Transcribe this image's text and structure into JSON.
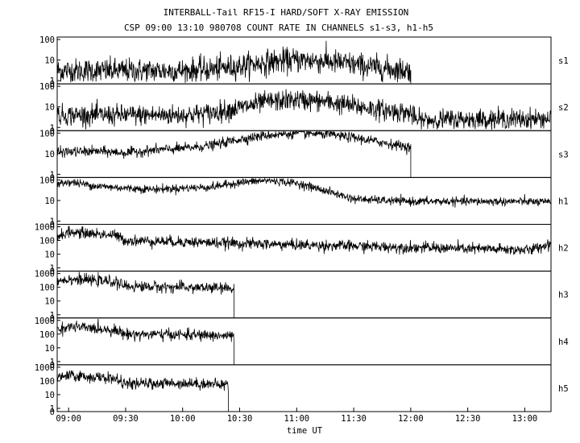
{
  "chart_data": {
    "type": "line",
    "title": "INTERBALL-Tail RF15-I HARD/SOFT X-RAY EMISSION",
    "subtitle": "CSP 09:00 13:10 980708  COUNT RATE IN CHANNELS s1-s3, h1-h5",
    "xlabel": "time UT",
    "x_ticks": [
      "09:00",
      "09:30",
      "10:00",
      "10:30",
      "11:00",
      "11:30",
      "12:00",
      "12:30",
      "13:00"
    ],
    "x_ticks_hours": [
      9.0,
      9.5,
      10.0,
      10.5,
      11.0,
      11.5,
      12.0,
      12.5,
      13.0
    ],
    "xlim": [
      8.9,
      13.23
    ],
    "y_scale": "log",
    "grid": false,
    "series": [
      {
        "name": "s1",
        "ylim": [
          0,
          100
        ],
        "y_ticks": [
          "100",
          "10",
          "1",
          "0"
        ],
        "x": [
          8.9,
          9.5,
          10.0,
          10.25,
          10.5,
          10.75,
          11.0,
          11.25,
          11.5,
          11.75,
          12.0
        ],
        "values": [
          3,
          3,
          3,
          3.5,
          5,
          8,
          10,
          9,
          6,
          4,
          3
        ],
        "noise": 0.3,
        "ends_at": 12.0
      },
      {
        "name": "s2",
        "ylim": [
          0,
          100
        ],
        "y_ticks": [
          "100",
          "10",
          "1",
          "0"
        ],
        "x": [
          8.9,
          9.5,
          10.0,
          10.25,
          10.5,
          10.75,
          11.0,
          11.25,
          11.5,
          11.75,
          12.0,
          12.05,
          12.5,
          13.0,
          13.23
        ],
        "values": [
          4,
          4,
          4,
          5,
          9,
          18,
          22,
          18,
          11,
          7,
          5,
          2.2,
          2.5,
          2.5,
          2.7
        ],
        "noise": 0.25
      },
      {
        "name": "s3",
        "ylim": [
          0,
          100
        ],
        "y_ticks": [
          "100",
          "10",
          "1",
          "0"
        ],
        "x": [
          8.9,
          9.25,
          9.5,
          9.75,
          10.0,
          10.25,
          10.5,
          10.75,
          11.0,
          11.25,
          11.5,
          11.75,
          12.0
        ],
        "values": [
          12,
          13,
          11,
          15,
          18,
          25,
          50,
          80,
          100,
          90,
          60,
          35,
          20
        ],
        "noise": 0.12,
        "ends_at": 12.0
      },
      {
        "name": "h1",
        "ylim": [
          0,
          100
        ],
        "y_ticks": [
          "100",
          "10",
          "1",
          "0"
        ],
        "x": [
          8.9,
          9.0,
          9.25,
          9.5,
          9.75,
          10.0,
          10.25,
          10.5,
          10.75,
          11.0,
          11.25,
          11.5,
          11.75,
          12.0,
          12.5,
          13.0,
          13.23
        ],
        "values": [
          60,
          80,
          50,
          40,
          35,
          40,
          45,
          75,
          95,
          70,
          30,
          12,
          10,
          9,
          9,
          9,
          8
        ],
        "noise": 0.1
      },
      {
        "name": "h2",
        "ylim": [
          0,
          1000
        ],
        "y_ticks": [
          "1000",
          "100",
          "10",
          "1",
          "0"
        ],
        "x": [
          8.9,
          9.0,
          9.25,
          9.4,
          9.5,
          10.0,
          10.5,
          10.9,
          13.05,
          13.23
        ],
        "values": [
          200,
          400,
          300,
          250,
          100,
          80,
          60,
          50,
          20,
          60
        ],
        "noise": 0.2
      },
      {
        "name": "h3",
        "ylim": [
          0,
          1000
        ],
        "y_ticks": [
          "1000",
          "100",
          "10",
          "1",
          "0"
        ],
        "x": [
          8.9,
          9.0,
          9.25,
          9.4,
          9.5,
          10.0,
          10.25,
          10.45
        ],
        "values": [
          300,
          400,
          300,
          250,
          120,
          100,
          90,
          80
        ],
        "noise": 0.2,
        "ends_at": 10.45
      },
      {
        "name": "h4",
        "ylim": [
          0,
          1000
        ],
        "y_ticks": [
          "1000",
          "100",
          "10",
          "1",
          "0"
        ],
        "x": [
          8.9,
          9.0,
          9.25,
          9.4,
          9.5,
          10.0,
          10.25,
          10.45
        ],
        "values": [
          200,
          350,
          250,
          200,
          100,
          90,
          80,
          70
        ],
        "noise": 0.2,
        "ends_at": 10.45
      },
      {
        "name": "h5",
        "ylim": [
          0,
          1000
        ],
        "y_ticks": [
          "1000",
          "100",
          "10",
          "1",
          "0"
        ],
        "x": [
          8.9,
          9.0,
          9.25,
          9.4,
          9.5,
          10.0,
          10.25,
          10.4
        ],
        "values": [
          150,
          250,
          180,
          150,
          60,
          70,
          60,
          50
        ],
        "noise": 0.2,
        "ends_at": 10.4
      }
    ]
  }
}
